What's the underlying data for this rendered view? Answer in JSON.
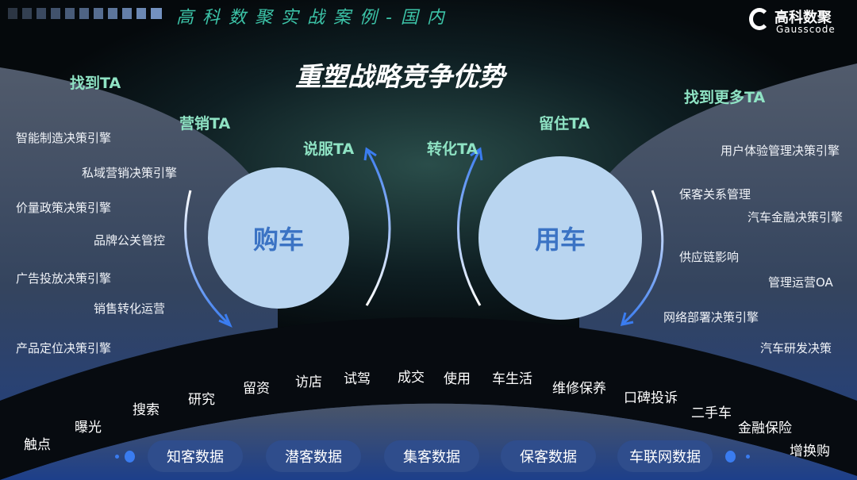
{
  "header": {
    "title": "高 科 数 聚 实 战 案 例 - 国 内",
    "logo_name": "高科数聚",
    "logo_sub": "Gausscode"
  },
  "headline": "重塑战略竞争优势",
  "ta_labels": {
    "find": "找到TA",
    "market": "营销TA",
    "persuade": "说服TA",
    "convert": "转化TA",
    "retain": "留住TA",
    "find_more": "找到更多TA"
  },
  "circles": {
    "buy": "购车",
    "use": "用车"
  },
  "left_engines": [
    "智能制造决策引擎",
    "私域营销决策引擎",
    "价量政策决策引擎",
    "品牌公关管控",
    "广告投放决策引擎",
    "销售转化运营",
    "产品定位决策引擎"
  ],
  "right_engines": [
    "用户体验管理决策引擎",
    "保客关系管理",
    "汽车金融决策引擎",
    "供应链影响",
    "管理运营OA",
    "网络部署决策引擎",
    "汽车研发决策"
  ],
  "stages": [
    "触点",
    "曝光",
    "搜索",
    "研究",
    "留资",
    "访店",
    "试驾",
    "成交",
    "使用",
    "车生活",
    "维修保养",
    "口碑投诉",
    "二手车",
    "金融保险",
    "增换购"
  ],
  "data_pills": [
    "知客数据",
    "潜客数据",
    "集客数据",
    "保客数据",
    "车联网数据"
  ],
  "colors": {
    "ta": "#8fe3c4",
    "circle": "#b9d5f0",
    "circle_text": "#3b73c4",
    "pill": "#2f4d8c",
    "accent": "#3a7cf0"
  }
}
